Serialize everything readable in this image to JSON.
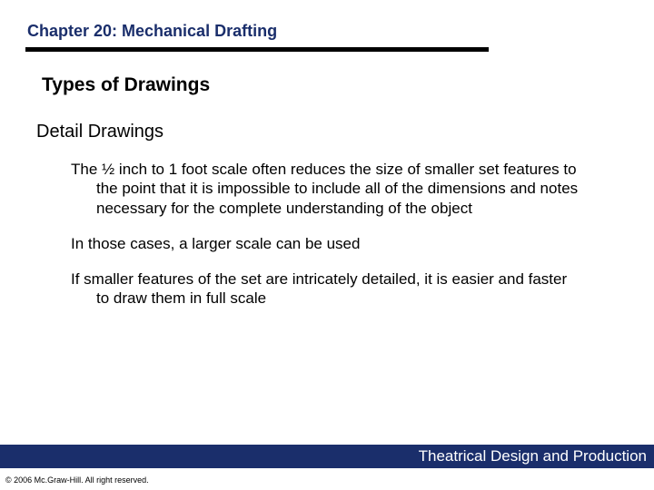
{
  "colors": {
    "accent": "#1a2e6b",
    "text": "#000000",
    "background": "#ffffff",
    "footer_text": "#ffffff",
    "rule": "#000000"
  },
  "typography": {
    "family": "Arial, Helvetica, sans-serif",
    "chapter_fontsize": 18,
    "section_fontsize": 21,
    "subsection_fontsize": 20,
    "body_fontsize": 17,
    "footer_fontsize": 17,
    "copyright_fontsize": 9
  },
  "header": {
    "chapter": "Chapter 20:  Mechanical Drafting",
    "rule_width": 510,
    "rule_height": 5
  },
  "content": {
    "section_title": "Types of Drawings",
    "subsection_title": "Detail Drawings",
    "paragraphs": [
      "The ½ inch to 1 foot scale often reduces the size of smaller set features to the point that it is impossible to include all of the dimensions and notes necessary for the complete understanding of the object",
      "In those cases, a larger scale can be used",
      "If smaller features of the set are intricately detailed, it is easier and faster to draw them in full scale"
    ]
  },
  "footer": {
    "title": "Theatrical Design and Production",
    "copyright": "© 2006 Mc.Graw-Hill. All right reserved."
  }
}
